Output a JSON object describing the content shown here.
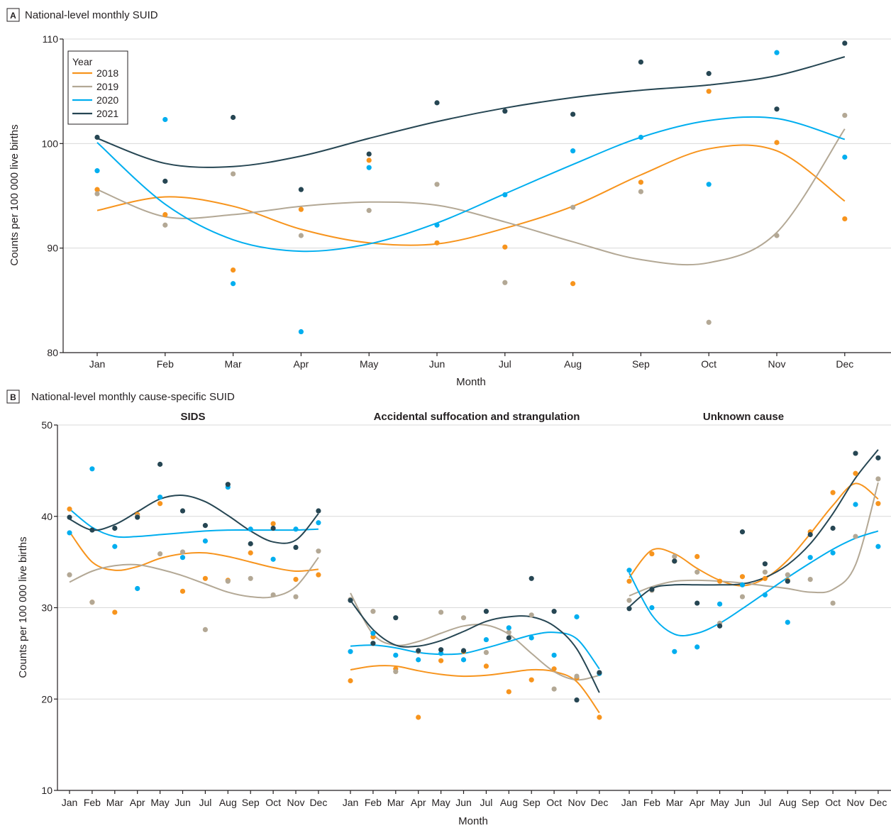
{
  "colors": {
    "2018": "#f7941d",
    "2019": "#b3a895",
    "2020": "#00aeef",
    "2021": "#264653"
  },
  "chart_data": [
    {
      "panel": "A",
      "title": "National-level monthly SUID",
      "type": "scatter",
      "xlabel": "Month",
      "ylabel": "Counts per 100 000 live births",
      "ylim": [
        80,
        110
      ],
      "yticks": [
        80,
        90,
        100,
        110
      ],
      "categories": [
        "Jan",
        "Feb",
        "Mar",
        "Apr",
        "May",
        "Jun",
        "Jul",
        "Aug",
        "Sep",
        "Oct",
        "Nov",
        "Dec"
      ],
      "legend": {
        "title": "Year",
        "placement": "top-left"
      },
      "grid": true,
      "series": [
        {
          "name": "2018",
          "values": [
            95.6,
            93.2,
            87.9,
            93.7,
            98.4,
            90.5,
            90.1,
            86.6,
            96.3,
            105.0,
            100.1,
            92.8
          ],
          "fit": [
            93.6,
            94.9,
            94.0,
            91.8,
            90.5,
            90.4,
            91.9,
            94.0,
            97.0,
            99.5,
            99.3,
            94.5
          ]
        },
        {
          "name": "2019",
          "values": [
            95.2,
            92.2,
            97.1,
            91.2,
            93.6,
            96.1,
            86.7,
            93.9,
            95.4,
            82.9,
            91.2,
            102.7
          ],
          "fit": [
            95.6,
            93.0,
            93.2,
            94.0,
            94.4,
            94.1,
            92.5,
            90.6,
            88.9,
            88.6,
            91.5,
            101.4
          ]
        },
        {
          "name": "2020",
          "values": [
            97.4,
            102.3,
            86.6,
            82.0,
            97.7,
            92.2,
            95.1,
            99.3,
            100.6,
            96.1,
            108.7,
            98.7
          ],
          "fit": [
            100.1,
            94.2,
            90.8,
            89.7,
            90.4,
            92.4,
            95.2,
            98.0,
            100.6,
            102.2,
            102.4,
            100.4
          ]
        },
        {
          "name": "2021",
          "values": [
            100.6,
            96.4,
            102.5,
            95.6,
            99.0,
            103.9,
            103.1,
            102.8,
            107.8,
            106.7,
            103.3,
            109.6
          ],
          "fit": [
            100.5,
            98.1,
            97.8,
            98.8,
            100.5,
            102.1,
            103.4,
            104.4,
            105.1,
            105.6,
            106.5,
            108.3
          ]
        }
      ]
    },
    {
      "panel": "B",
      "title": "National-level monthly cause-specific SUID",
      "type": "scatter",
      "xlabel": "Month",
      "ylabel": "Counts per 100 000 live births",
      "ylim": [
        10,
        50
      ],
      "yticks": [
        10,
        20,
        30,
        40,
        50
      ],
      "categories": [
        "Jan",
        "Feb",
        "Mar",
        "Apr",
        "May",
        "Jun",
        "Jul",
        "Aug",
        "Sep",
        "Oct",
        "Nov",
        "Dec"
      ],
      "grid": true,
      "facets": [
        {
          "title": "SIDS",
          "series": [
            {
              "name": "2018",
              "values": [
                40.8,
                30.6,
                29.5,
                40.2,
                41.4,
                31.8,
                33.2,
                33.0,
                36.0,
                39.2,
                33.1,
                33.6
              ],
              "fit": [
                38.3,
                35.0,
                34.1,
                34.5,
                35.4,
                35.9,
                36.0,
                35.6,
                35.0,
                34.4,
                34.0,
                34.2
              ]
            },
            {
              "name": "2019",
              "values": [
                33.6,
                30.6,
                38.7,
                40.0,
                35.9,
                36.1,
                27.6,
                32.9,
                33.2,
                31.4,
                31.2,
                36.2
              ],
              "fit": [
                32.8,
                34.0,
                34.6,
                34.7,
                34.2,
                33.5,
                32.6,
                31.7,
                31.2,
                31.2,
                32.3,
                35.5
              ]
            },
            {
              "name": "2020",
              "values": [
                38.2,
                45.2,
                36.7,
                32.1,
                42.1,
                35.5,
                37.3,
                43.2,
                38.6,
                35.3,
                38.6,
                39.3
              ],
              "fit": [
                40.8,
                38.8,
                37.8,
                37.8,
                38.0,
                38.2,
                38.4,
                38.5,
                38.5,
                38.5,
                38.5,
                38.6
              ]
            },
            {
              "name": "2021",
              "values": [
                39.9,
                38.5,
                38.7,
                39.9,
                45.7,
                40.6,
                39.0,
                43.5,
                37.0,
                38.7,
                36.6,
                40.6
              ],
              "fit": [
                39.7,
                38.5,
                39.1,
                40.5,
                41.9,
                42.3,
                41.6,
                40.1,
                38.4,
                37.2,
                37.4,
                40.3
              ]
            }
          ]
        },
        {
          "title": "Accidental suffocation and strangulation",
          "series": [
            {
              "name": "2018",
              "values": [
                22.0,
                26.8,
                23.3,
                18.0,
                24.2,
                25.2,
                23.6,
                20.8,
                22.1,
                23.3,
                22.3,
                18.0
              ],
              "fit": [
                23.2,
                23.6,
                23.6,
                23.1,
                22.7,
                22.5,
                22.6,
                22.9,
                23.2,
                23.0,
                21.9,
                18.5
              ]
            },
            {
              "name": "2019",
              "values": [
                30.9,
                29.6,
                23.0,
                25.2,
                29.5,
                28.9,
                25.1,
                27.3,
                29.2,
                21.1,
                22.5,
                22.8
              ],
              "fit": [
                31.6,
                27.1,
                25.9,
                26.3,
                27.2,
                28.0,
                28.1,
                27.1,
                25.0,
                23.0,
                22.1,
                22.6
              ]
            },
            {
              "name": "2020",
              "values": [
                25.2,
                27.2,
                24.8,
                24.3,
                25.0,
                24.3,
                26.5,
                27.8,
                26.7,
                24.8,
                29.0,
                22.8
              ],
              "fit": [
                25.8,
                25.9,
                25.6,
                25.1,
                24.9,
                25.0,
                25.6,
                26.3,
                27.0,
                27.3,
                26.6,
                23.3
              ]
            },
            {
              "name": "2021",
              "values": [
                30.8,
                26.1,
                28.9,
                25.3,
                25.4,
                25.3,
                29.6,
                26.7,
                33.2,
                29.6,
                19.9,
                22.9
              ],
              "fit": [
                30.8,
                27.6,
                25.9,
                25.8,
                26.4,
                27.4,
                28.5,
                29.0,
                29.0,
                28.0,
                25.5,
                20.7
              ]
            }
          ]
        },
        {
          "title": "Unknown cause",
          "series": [
            {
              "name": "2018",
              "values": [
                32.9,
                35.9,
                35.1,
                35.6,
                32.9,
                33.4,
                33.2,
                33.0,
                38.3,
                42.6,
                44.7,
                41.4
              ],
              "fit": [
                33.3,
                36.3,
                35.9,
                34.3,
                33.0,
                32.4,
                33.2,
                35.2,
                38.1,
                41.2,
                43.6,
                41.9
              ]
            },
            {
              "name": "2019",
              "values": [
                30.8,
                31.9,
                35.6,
                33.9,
                28.3,
                31.2,
                33.9,
                33.6,
                33.1,
                30.5,
                37.8,
                44.1
              ],
              "fit": [
                31.3,
                32.3,
                32.9,
                33.0,
                32.9,
                32.7,
                32.4,
                32.1,
                31.7,
                32.0,
                34.7,
                43.7
              ]
            },
            {
              "name": "2020",
              "values": [
                34.1,
                30.0,
                25.2,
                25.7,
                30.4,
                32.5,
                31.4,
                28.4,
                35.5,
                36.0,
                41.3,
                36.7
              ],
              "fit": [
                33.8,
                29.2,
                27.1,
                27.2,
                28.3,
                29.9,
                31.6,
                33.3,
                34.9,
                36.4,
                37.6,
                38.4
              ]
            },
            {
              "name": "2021",
              "values": [
                29.9,
                32.0,
                35.1,
                30.5,
                28.0,
                38.3,
                34.8,
                32.9,
                38.0,
                38.7,
                46.9,
                46.4
              ],
              "fit": [
                30.1,
                32.1,
                32.5,
                32.5,
                32.5,
                32.6,
                33.3,
                34.7,
                37.0,
                40.3,
                44.2,
                47.3
              ]
            }
          ]
        }
      ]
    }
  ]
}
